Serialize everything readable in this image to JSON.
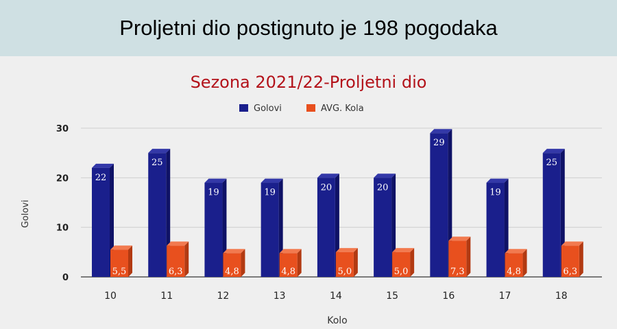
{
  "banner": {
    "text": "Proljetni dio postignuto je 198 pogodaka"
  },
  "chart_data": {
    "type": "bar",
    "title": "Sezona 2021/22-Proljetni dio",
    "xlabel": "Kolo",
    "ylabel": "Golovi",
    "ylim": [
      0,
      30
    ],
    "yticks": [
      "0",
      "10",
      "20",
      "30"
    ],
    "grid": true,
    "legend_position": "top-center",
    "categories": [
      "10",
      "11",
      "12",
      "13",
      "14",
      "15",
      "16",
      "17",
      "18"
    ],
    "series": [
      {
        "name": "Golovi",
        "color": "#1a1f8c",
        "values": [
          22,
          25,
          19,
          19,
          20,
          20,
          29,
          19,
          25
        ],
        "labels": [
          "22",
          "25",
          "19",
          "19",
          "20",
          "20",
          "29",
          "19",
          "25"
        ]
      },
      {
        "name": "AVG. Kola",
        "color": "#e8501e",
        "values": [
          5.5,
          6.3,
          4.8,
          4.8,
          5.0,
          5.0,
          7.3,
          4.8,
          6.3
        ],
        "labels": [
          "5,5",
          "6,3",
          "4,8",
          "4,8",
          "5,0",
          "5,0",
          "7,3",
          "4,8",
          "6,3"
        ]
      }
    ]
  }
}
